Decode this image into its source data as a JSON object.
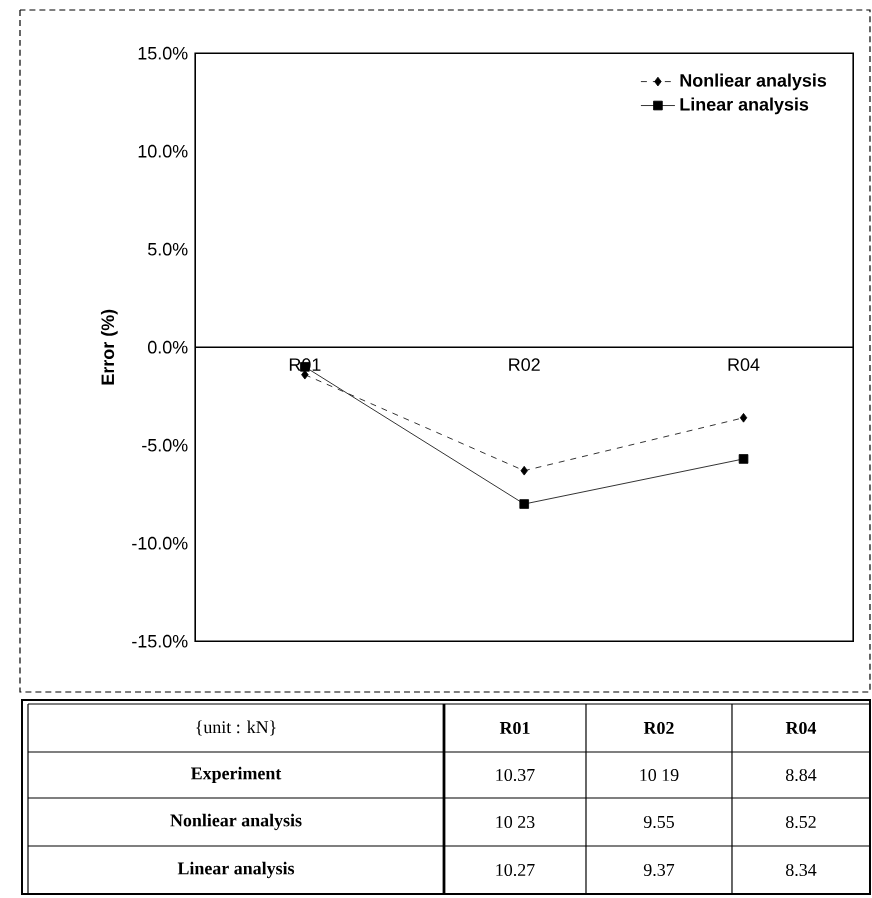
{
  "chart_data": {
    "type": "line",
    "ylabel": "Error (%)",
    "categories": [
      "R01",
      "R02",
      "R04"
    ],
    "series": [
      {
        "name": "Nonliear analysis",
        "color": "#000000",
        "values": [
          -1.4,
          -6.3,
          -3.6
        ],
        "marker": "diamond",
        "line_style": "dashed"
      },
      {
        "name": "Linear analysis",
        "color": "#000000",
        "values": [
          -1.0,
          -8.0,
          -5.7
        ],
        "marker": "square",
        "line_style": "solid"
      }
    ],
    "ylim": [
      -15,
      15
    ],
    "yticks": [
      {
        "value": -15,
        "label": "-15.0%"
      },
      {
        "value": -10,
        "label": "-10.0%"
      },
      {
        "value": -5,
        "label": "-5.0%"
      },
      {
        "value": 0,
        "label": "0.0%"
      },
      {
        "value": 5,
        "label": "5.0%"
      },
      {
        "value": 10,
        "label": "10.0%"
      },
      {
        "value": 15,
        "label": "15.0%"
      }
    ],
    "grid": false,
    "legend": "top right",
    "annotations": [
      "{unit : kN}",
      "R01",
      "R02",
      "R04",
      "Experiment",
      "10.37",
      "10 19",
      "8.84",
      "Nonliear analysis",
      "10 23",
      "9.55",
      "8.52",
      "Linear analysis",
      "10.27",
      "9.37",
      "8.34"
    ]
  }
}
